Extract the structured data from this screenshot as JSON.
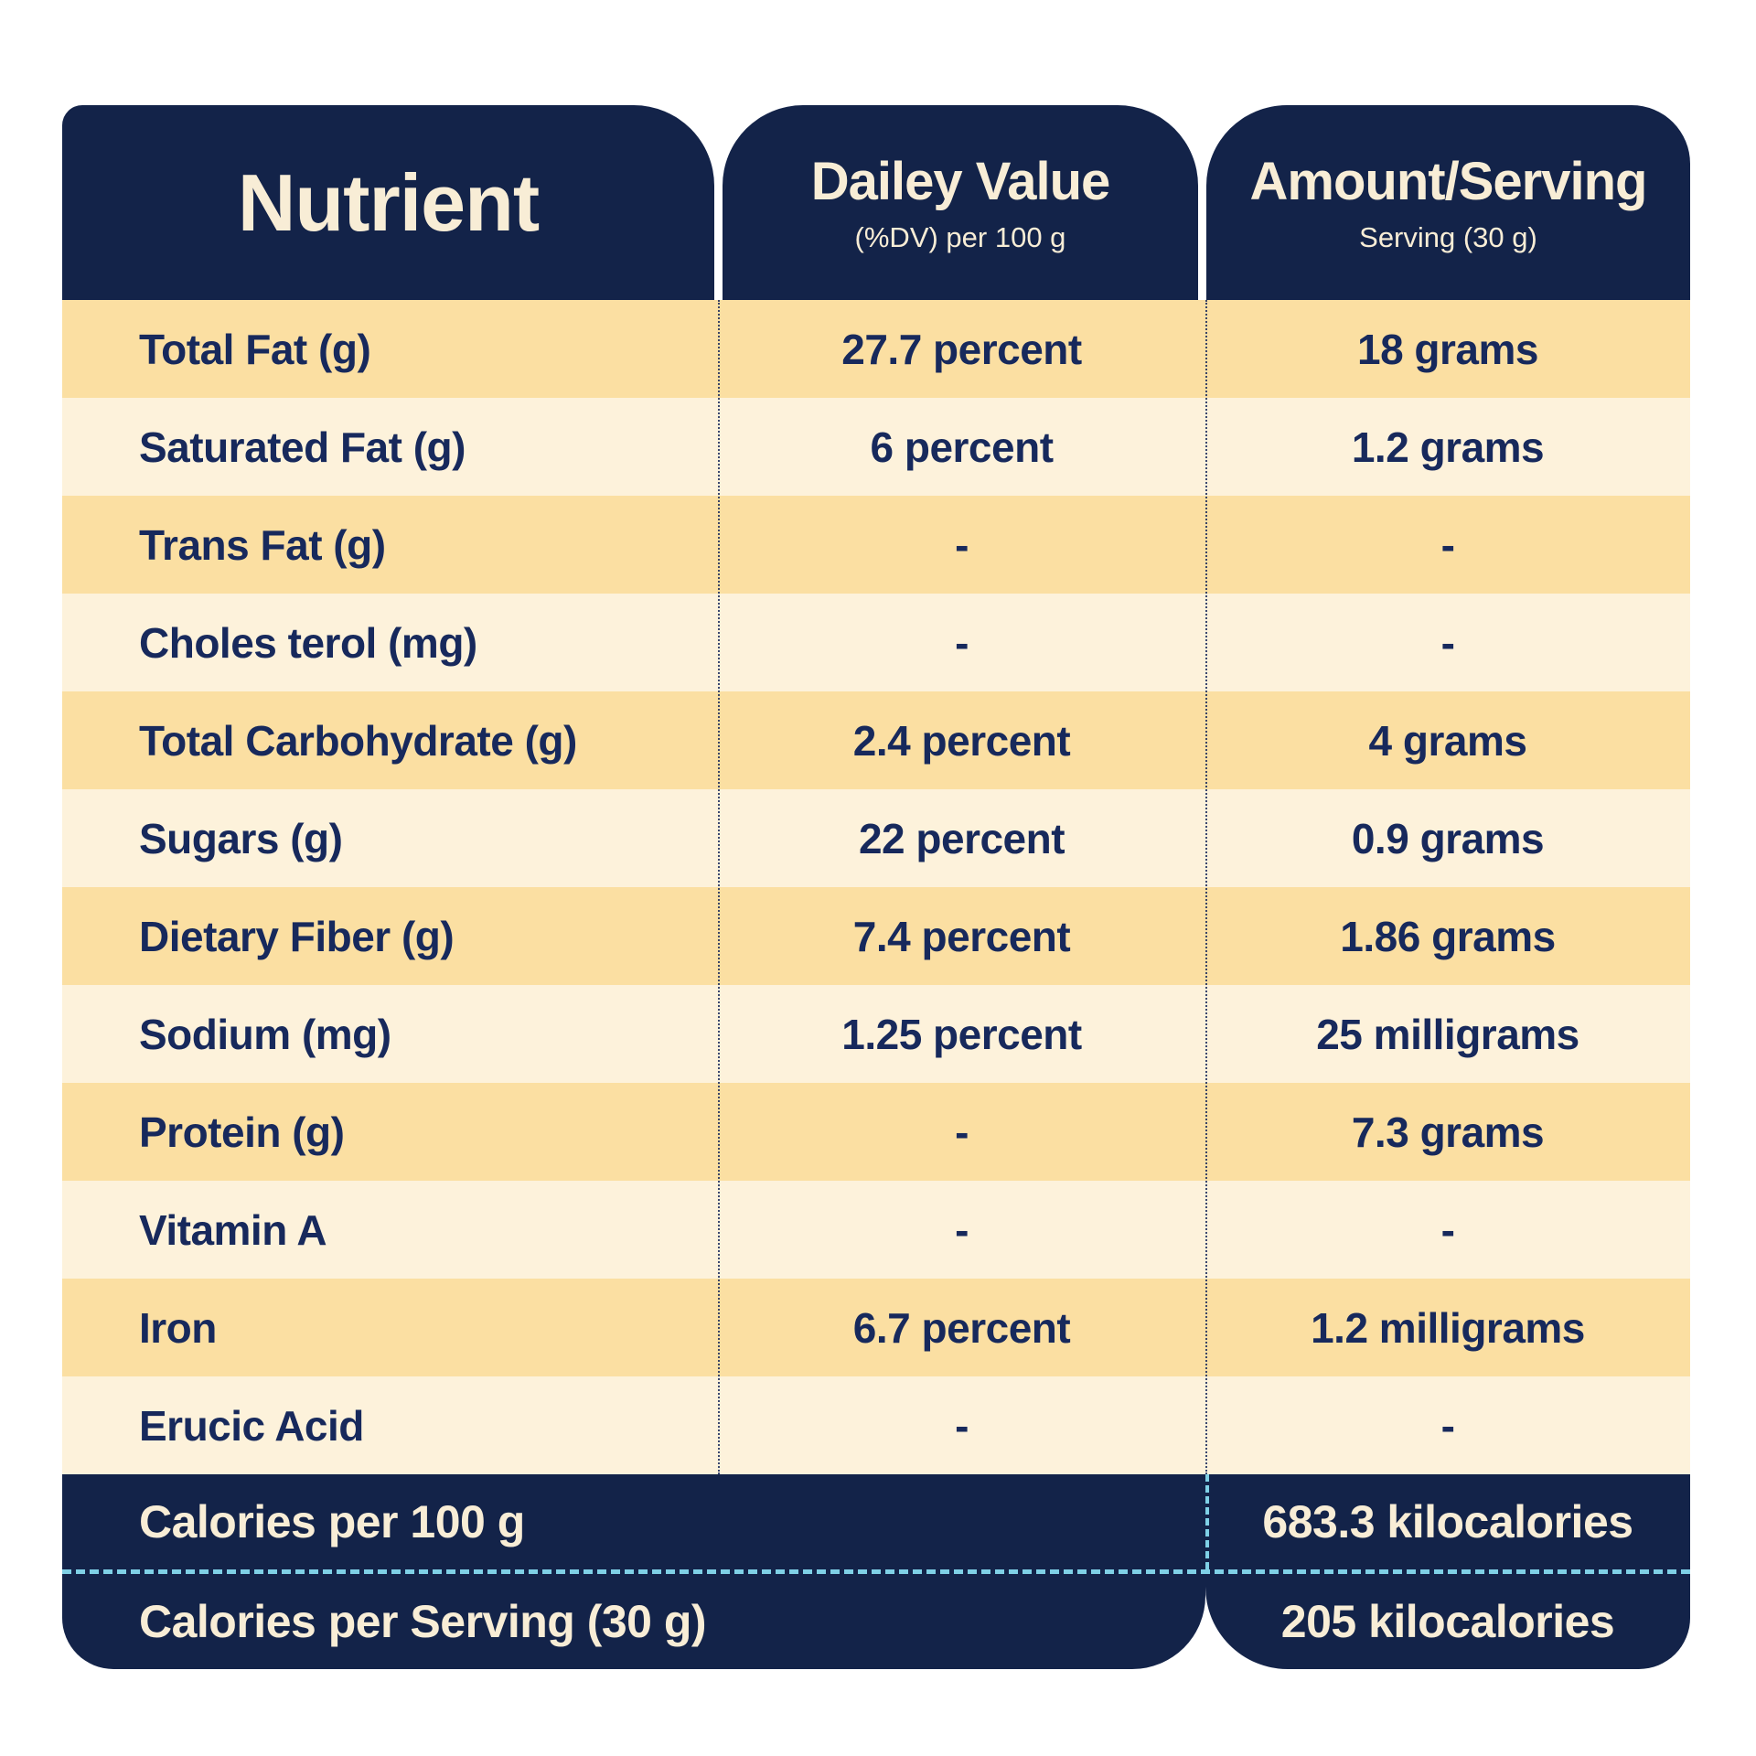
{
  "colors": {
    "navy": "#132349",
    "row_peach": "#FBDFA2",
    "row_cream": "#FDF2DB",
    "header_text": "#F8EDD6",
    "body_text": "#17295C",
    "divider_cyan": "#7FD0E6"
  },
  "header": {
    "columns": [
      {
        "title": "Nutrient",
        "subtitle": ""
      },
      {
        "title": "Dailey Value",
        "subtitle": "(%DV) per 100 g"
      },
      {
        "title": "Amount/Serving",
        "subtitle": "Serving (30 g)"
      }
    ]
  },
  "chart_data": {
    "type": "table",
    "title": "Nutrient table with Daily Value per 100 g and Amount per 30 g Serving",
    "columns": [
      "Nutrient",
      "Dailey Value (%DV) per 100 g",
      "Amount/Serving Serving (30 g)"
    ],
    "rows": [
      {
        "nutrient": "Total Fat (g)",
        "daily_value": "27.7 percent",
        "amount": "18 grams"
      },
      {
        "nutrient": "Saturated Fat (g)",
        "daily_value": "6 percent",
        "amount": "1.2 grams"
      },
      {
        "nutrient": "Trans Fat (g)",
        "daily_value": "-",
        "amount": "-"
      },
      {
        "nutrient": "Choles terol (mg)",
        "daily_value": "-",
        "amount": "-"
      },
      {
        "nutrient": "Total Carbohydrate (g)",
        "daily_value": "2.4 percent",
        "amount": "4 grams"
      },
      {
        "nutrient": "Sugars (g)",
        "daily_value": "22 percent",
        "amount": "0.9 grams"
      },
      {
        "nutrient": "Dietary Fiber (g)",
        "daily_value": "7.4 percent",
        "amount": "1.86 grams"
      },
      {
        "nutrient": "Sodium (mg)",
        "daily_value": "1.25 percent",
        "amount": "25 milligrams"
      },
      {
        "nutrient": "Protein (g)",
        "daily_value": "-",
        "amount": "7.3 grams"
      },
      {
        "nutrient": "Vitamin A",
        "daily_value": "-",
        "amount": "-"
      },
      {
        "nutrient": "Iron",
        "daily_value": "6.7 percent",
        "amount": "1.2 milligrams"
      },
      {
        "nutrient": "Erucic Acid",
        "daily_value": "-",
        "amount": "-"
      }
    ],
    "footer_rows": [
      {
        "label": "Calories per 100 g",
        "value": "683.3 kilocalories"
      },
      {
        "label": "Calories per Serving (30 g)",
        "value": "205 kilocalories"
      }
    ]
  }
}
